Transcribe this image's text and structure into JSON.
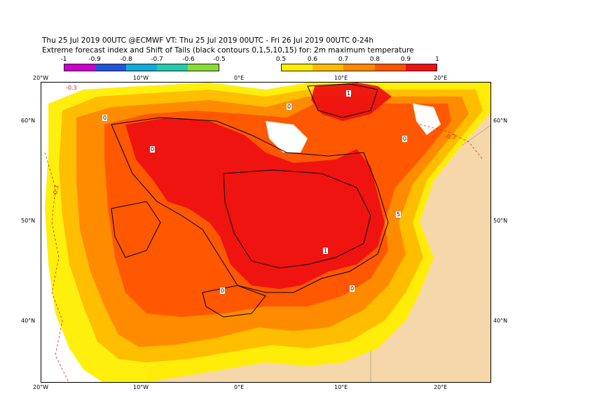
{
  "title_line1": "Thu 25 Jul 2019 00UTC @ECMWF VT: Thu 25 Jul 2019 00UTC - Fri 26 Jul 2019 00UTC  0-24h",
  "title_line2": "Extreme forecast index and Shift of Tails (black contours 0,1,5,10,15) for: 2m maximum temperature",
  "colorbar_negative": {
    "ticks": [
      "-1",
      "-0.9",
      "-0.8",
      "-0.7",
      "-0.6",
      "-0.5"
    ],
    "colors": [
      "#cc00cc",
      "#2255dd",
      "#11aadd",
      "#22ccaa",
      "#88dd33"
    ]
  },
  "colorbar_positive": {
    "ticks": [
      "0.5",
      "0.6",
      "0.7",
      "0.8",
      "0.9",
      "1"
    ],
    "colors": [
      "#ffee00",
      "#ffbb00",
      "#ff8800",
      "#ff5500",
      "#ee1111"
    ]
  },
  "top_lon_labels": [
    "20°W",
    "10°W",
    "0°E",
    "10°E",
    "20°E"
  ],
  "bottom_lon_labels": [
    "20°W",
    "10°W",
    "0°E",
    "10°E",
    "20°E"
  ],
  "left_lat_labels": [
    "60°N",
    "50°N",
    "40°N"
  ],
  "right_lat_labels": [
    "60°N",
    "50°N",
    "40°N"
  ],
  "contour_labels": [
    "0",
    "0",
    "1",
    "5",
    "0",
    "1",
    "0",
    "0",
    "0"
  ],
  "dashed_labels": [
    "-0.3",
    "-0.3",
    "-0.3"
  ],
  "colors": {
    "land": "#f6d7a9",
    "sea": "#ffffff",
    "efi_dashed": "#dd2222"
  }
}
